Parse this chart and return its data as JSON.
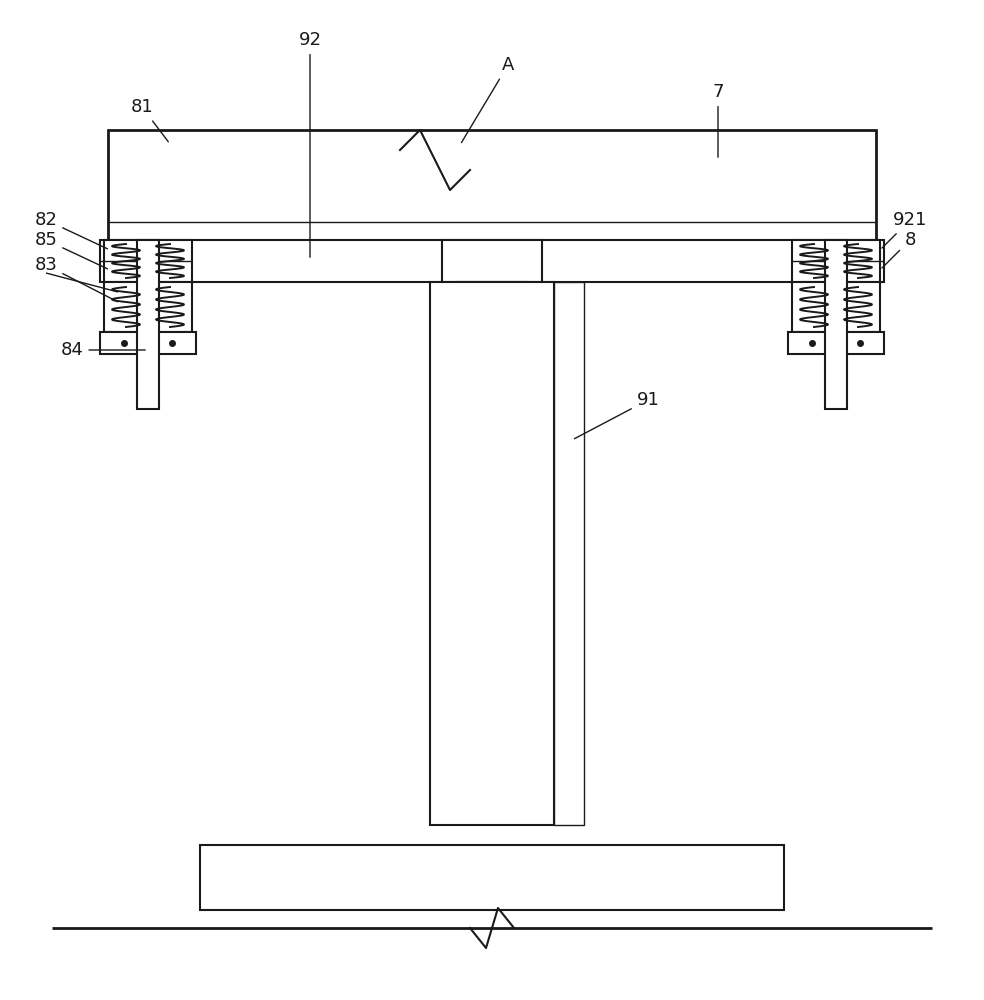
{
  "bg_color": "#ffffff",
  "line_color": "#1a1a1a",
  "lw": 1.5,
  "lw_thick": 2.0,
  "lw_thin": 1.0
}
